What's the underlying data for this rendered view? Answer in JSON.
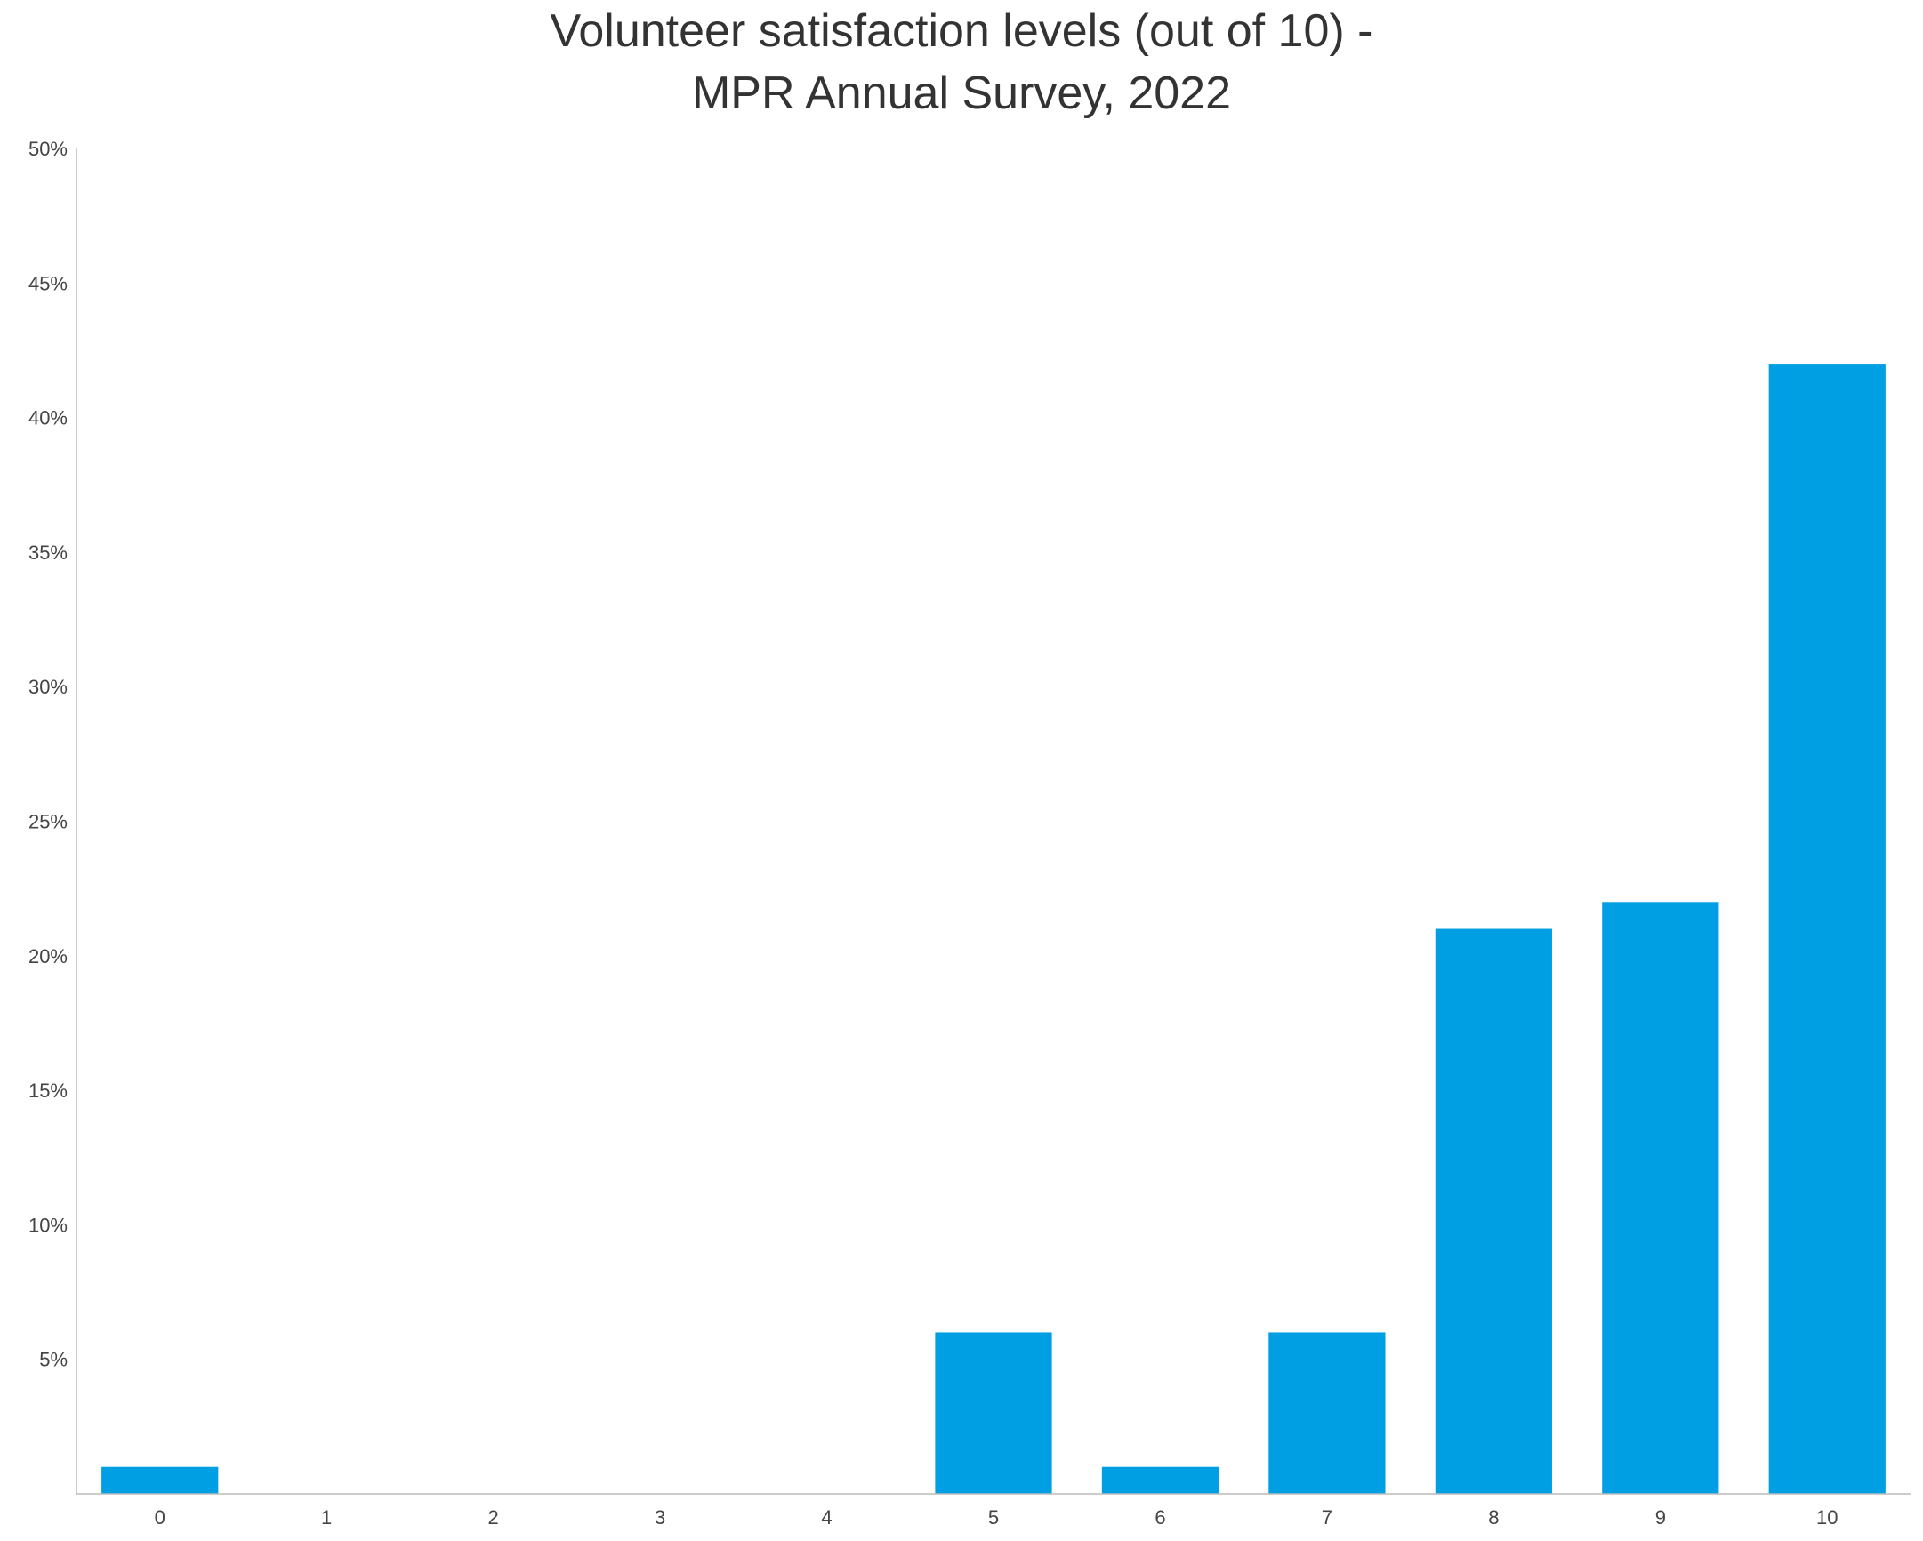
{
  "chart_data": {
    "type": "bar",
    "title": "Volunteer satisfaction levels (out of 10) - MPR Annual Survey, 2022",
    "title_lines": [
      "Volunteer satisfaction levels (out of 10) -",
      "MPR Annual Survey, 2022"
    ],
    "xlabel": "",
    "ylabel": "",
    "categories": [
      "0",
      "1",
      "2",
      "3",
      "4",
      "5",
      "6",
      "7",
      "8",
      "9",
      "10"
    ],
    "values": [
      1,
      0,
      0,
      0,
      0,
      6,
      1,
      6,
      21,
      22,
      42
    ],
    "value_unit": "%",
    "ylim": [
      0,
      50
    ],
    "yticks": [
      5,
      10,
      15,
      20,
      25,
      30,
      35,
      40,
      45,
      50
    ],
    "ytick_labels": [
      "5%",
      "10%",
      "15%",
      "20%",
      "25%",
      "30%",
      "35%",
      "40%",
      "45%",
      "50%"
    ],
    "grid": false,
    "legend": "none",
    "bar_color": "#009FE3",
    "axis_color": "#BBBBBB"
  }
}
